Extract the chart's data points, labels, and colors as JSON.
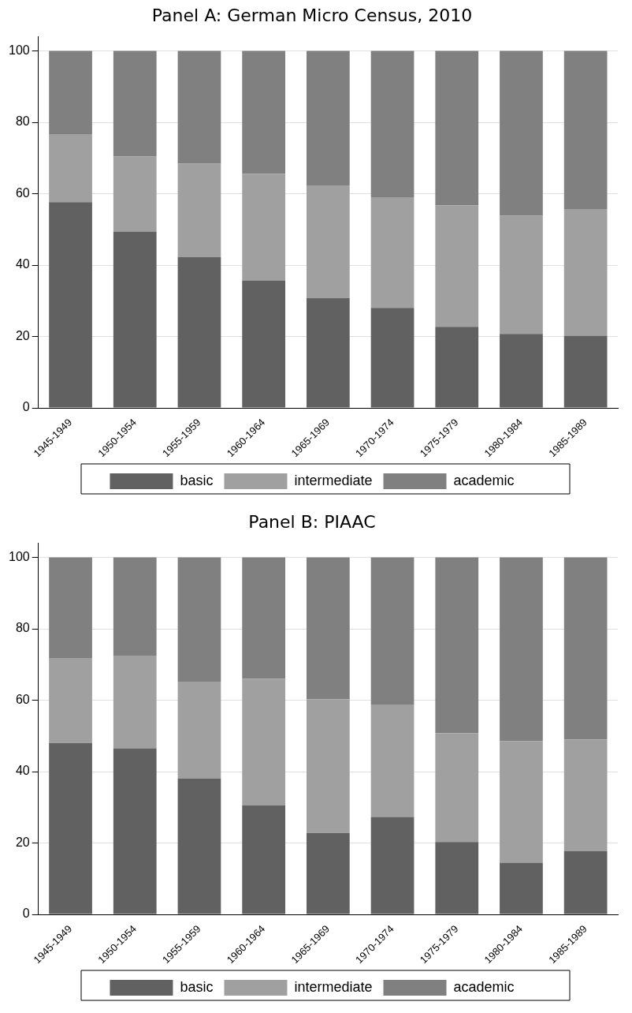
{
  "chart_data": [
    {
      "type": "bar",
      "title": "Panel A: German Micro Census, 2010",
      "stacked": true,
      "categories": [
        "1945-1949",
        "1950-1954",
        "1955-1959",
        "1960-1964",
        "1965-1969",
        "1970-1974",
        "1975-1979",
        "1980-1984",
        "1985-1989"
      ],
      "series": [
        {
          "name": "basic",
          "color": "#616161",
          "values": [
            57.6,
            49.4,
            42.2,
            35.7,
            30.8,
            28,
            22.7,
            20.7,
            20.2
          ]
        },
        {
          "name": "intermediate",
          "color": "#a0a0a0",
          "values": [
            18.9,
            21,
            26.2,
            29.8,
            31.5,
            31,
            34,
            33.1,
            35.3
          ]
        },
        {
          "name": "academic",
          "color": "#808080",
          "values": [
            23.5,
            29.6,
            31.6,
            34.5,
            37.7,
            41,
            43.3,
            46.2,
            44.5
          ]
        }
      ],
      "ylim": [
        0,
        104
      ],
      "yticks": [
        0,
        20,
        40,
        60,
        80,
        100
      ],
      "grid": "y",
      "legend": "bottom"
    },
    {
      "type": "bar",
      "title": "Panel B: PIAAC",
      "stacked": true,
      "categories": [
        "1945-1949",
        "1950-1954",
        "1955-1959",
        "1960-1964",
        "1965-1969",
        "1970-1974",
        "1975-1979",
        "1980-1984",
        "1985-1989"
      ],
      "series": [
        {
          "name": "basic",
          "color": "#616161",
          "values": [
            48,
            46.5,
            38,
            30.5,
            22.8,
            27.3,
            20.3,
            14.5,
            17.7
          ]
        },
        {
          "name": "intermediate",
          "color": "#a0a0a0",
          "values": [
            23.8,
            26,
            27.2,
            35.5,
            37.5,
            31.5,
            30.5,
            34,
            31.3
          ]
        },
        {
          "name": "academic",
          "color": "#808080",
          "values": [
            28.2,
            27.5,
            34.8,
            34,
            39.7,
            41.2,
            49.2,
            51.5,
            51
          ]
        }
      ],
      "ylim": [
        0,
        104
      ],
      "yticks": [
        0,
        20,
        40,
        60,
        80,
        100
      ],
      "grid": "y",
      "legend": "bottom"
    }
  ]
}
